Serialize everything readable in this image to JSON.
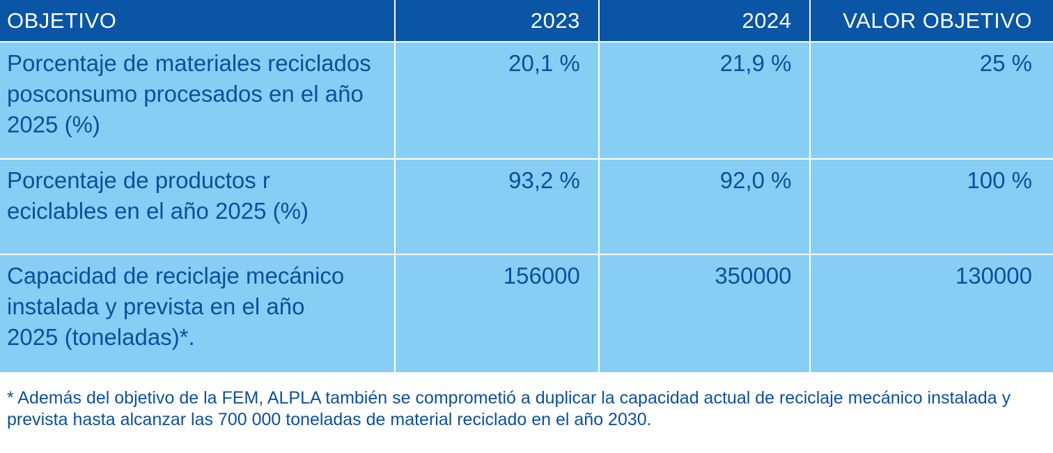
{
  "table": {
    "headers": [
      "OBJETIVO",
      "2023",
      "2024",
      "VALOR OBJETIVO"
    ],
    "rows": [
      {
        "objetivo": "Porcentaje de materiales reciclados posconsumo procesados en el año 2025 (%)",
        "y2023": "20,1 %",
        "y2024": "21,9 %",
        "valor_objetivo": "25 %"
      },
      {
        "objetivo": "Porcentaje de productos r eciclables en el año 2025 (%)",
        "y2023": "93,2 %",
        "y2024": "92,0 %",
        "valor_objetivo": "100 %"
      },
      {
        "objetivo": "Capacidad de reciclaje mecánico instalada y prevista en el año 2025 (toneladas)*.",
        "y2023": "156000",
        "y2024": "350000",
        "valor_objetivo": "130000"
      }
    ]
  },
  "footnote": "* Además del objetivo de la FEM, ALPLA también se comprometió a duplicar la capacidad actual de reciclaje mecánico instalada y prevista hasta alcanzar las 700 000 toneladas de material reciclado en el año 2030.",
  "colors": {
    "header_bg": "#0a55a5",
    "row_bg": "#87cef5",
    "text": "#0b4f9e"
  }
}
